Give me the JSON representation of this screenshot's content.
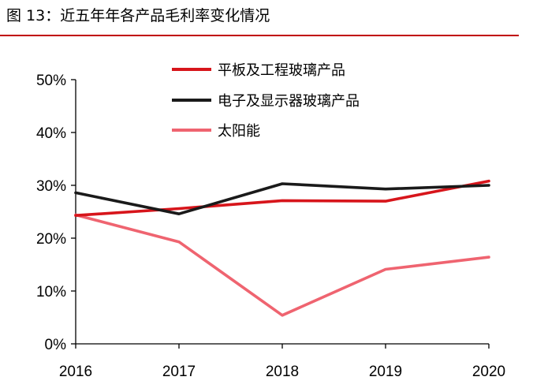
{
  "figure": {
    "title": "图 13：近五年年各产品毛利率变化情况",
    "accent_color": "#c00000"
  },
  "chart_data": {
    "type": "line",
    "title": "",
    "xlabel": "",
    "ylabel": "",
    "x": [
      "2016",
      "2017",
      "2018",
      "2019",
      "2020"
    ],
    "ylim": [
      0,
      50
    ],
    "y_ticks": [
      0,
      10,
      20,
      30,
      40,
      50
    ],
    "y_tick_labels": [
      "0%",
      "10%",
      "20%",
      "30%",
      "40%",
      "50%"
    ],
    "grid": false,
    "legend_position": "top-right",
    "series": [
      {
        "name": "平板及工程玻璃产品",
        "color": "#d7151b",
        "values": [
          24.3,
          25.6,
          27.1,
          27.0,
          30.8
        ]
      },
      {
        "name": "电子及显示器玻璃产品",
        "color": "#1a1a1a",
        "values": [
          28.6,
          24.6,
          30.3,
          29.3,
          30.0
        ]
      },
      {
        "name": "太阳能",
        "color": "#ef6470",
        "values": [
          24.4,
          19.3,
          5.4,
          14.1,
          16.4
        ]
      }
    ]
  }
}
